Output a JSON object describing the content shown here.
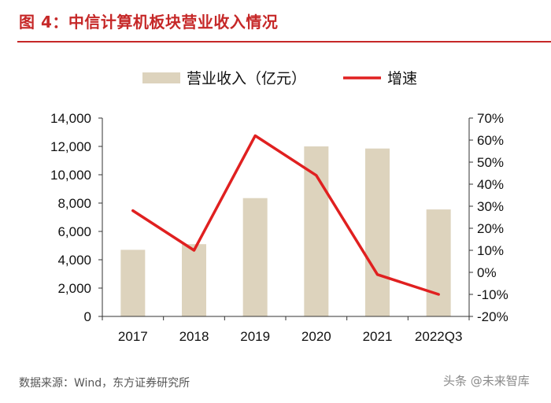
{
  "header": {
    "title": "图 4：中信计算机板块营业收入情况"
  },
  "chart_data": {
    "type": "bar+line",
    "title": "中信计算机板块营业收入情况",
    "categories": [
      "2017",
      "2018",
      "2019",
      "2020",
      "2021",
      "2022Q3"
    ],
    "series": [
      {
        "name": "营业收入（亿元）",
        "type": "bar",
        "axis": "left",
        "color": "#ddd3bd",
        "values": [
          4700,
          5100,
          8350,
          12000,
          11850,
          7550
        ]
      },
      {
        "name": "增速",
        "type": "line",
        "axis": "right",
        "color": "#e02020",
        "values": [
          28,
          10,
          62,
          44,
          -1,
          -10
        ]
      }
    ],
    "left_axis": {
      "ylim": [
        0,
        14000
      ],
      "ticks": [
        0,
        2000,
        4000,
        6000,
        8000,
        10000,
        12000,
        14000
      ],
      "tick_labels": [
        "0",
        "2,000",
        "4,000",
        "6,000",
        "8,000",
        "10,000",
        "12,000",
        "14,000"
      ]
    },
    "right_axis": {
      "ylim": [
        -20,
        70
      ],
      "ticks": [
        -20,
        -10,
        0,
        10,
        20,
        30,
        40,
        50,
        60,
        70
      ],
      "tick_labels": [
        "-20%",
        "-10%",
        "0%",
        "10%",
        "20%",
        "30%",
        "40%",
        "50%",
        "60%",
        "70%"
      ]
    },
    "legend_position": "top-center",
    "grid": false
  },
  "footer": {
    "source": "数据来源：Wind，东方证券研究所",
    "watermark": "头条 @未来智库"
  }
}
